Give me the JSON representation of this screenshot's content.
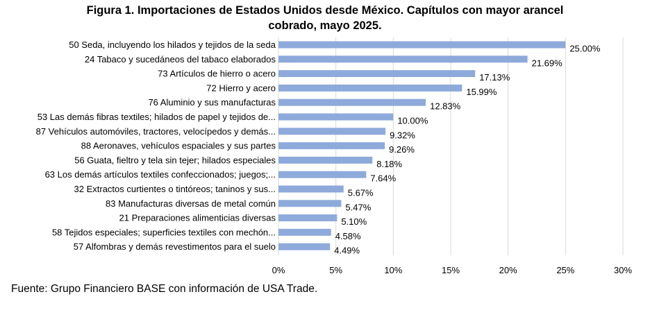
{
  "title_line1": "Figura 1. Importaciones de Estados Unidos desde México. Capítulos con mayor arancel",
  "title_line2": "cobrado, mayo 2025.",
  "source": "Fuente: Grupo Financiero BASE con información de USA Trade.",
  "chart_data": {
    "type": "bar",
    "orientation": "horizontal",
    "categories": [
      "50 Seda, incluyendo los hilados y tejidos de la seda",
      "24 Tabaco y sucedáneos del tabaco elaborados",
      "73 Artículos de hierro o acero",
      "72 Hierro y acero",
      "76 Aluminio y sus manufacturas",
      "53 Las demás fibras textiles; hilados de papel y tejidos de...",
      "87 Vehículos automóviles, tractores, velocípedos y demás...",
      "88 Aeronaves, vehículos espaciales y sus partes",
      "56 Guata, fieltro y tela sin tejer; hilados especiales",
      "63 Los demás artículos textiles confeccionados; juegos;...",
      "32 Extractos curtientes o tintóreos; taninos y sus...",
      "83 Manufacturas diversas de metal común",
      "21 Preparaciones alimenticias diversas",
      "58 Tejidos especiales; superficies textiles con mechón...",
      "57 Alfombras y demás revestimentos para el suelo"
    ],
    "values": [
      25.0,
      21.69,
      17.13,
      15.99,
      12.83,
      10.0,
      9.32,
      9.26,
      8.18,
      7.64,
      5.67,
      5.47,
      5.1,
      4.58,
      4.49
    ],
    "value_labels": [
      "25.00%",
      "21.69%",
      "17.13%",
      "15.99%",
      "12.83%",
      "10.00%",
      "9.32%",
      "9.26%",
      "8.18%",
      "7.64%",
      "5.67%",
      "5.47%",
      "5.10%",
      "4.58%",
      "4.49%"
    ],
    "xlim": [
      0,
      30
    ],
    "xticks": [
      0,
      5,
      10,
      15,
      20,
      25,
      30
    ],
    "xtick_labels": [
      "0%",
      "5%",
      "10%",
      "15%",
      "20%",
      "25%",
      "30%"
    ],
    "grid": true,
    "legend": "none",
    "bar_color": "#8eaadb",
    "grid_color": "#d9d9d9"
  }
}
